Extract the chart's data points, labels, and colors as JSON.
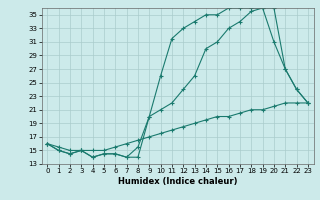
{
  "xlabel": "Humidex (Indice chaleur)",
  "background_color": "#cceaea",
  "line_color": "#1a7a6e",
  "grid_color": "#aacccc",
  "xlim": [
    -0.5,
    23.5
  ],
  "ylim": [
    13,
    36
  ],
  "yticks": [
    13,
    15,
    17,
    19,
    21,
    23,
    25,
    27,
    29,
    31,
    33,
    35
  ],
  "xticks": [
    0,
    1,
    2,
    3,
    4,
    5,
    6,
    7,
    8,
    9,
    10,
    11,
    12,
    13,
    14,
    15,
    16,
    17,
    18,
    19,
    20,
    21,
    22,
    23
  ],
  "line1_x": [
    0,
    1,
    2,
    3,
    4,
    5,
    6,
    7,
    8,
    9,
    10,
    11,
    12,
    13,
    14,
    15,
    16,
    17,
    18,
    19,
    20,
    21,
    22,
    23
  ],
  "line1_y": [
    16,
    15,
    14.5,
    15,
    14,
    14.5,
    14.5,
    14,
    14,
    20,
    21,
    22,
    24,
    26,
    30,
    31,
    33,
    34,
    35.5,
    36,
    36,
    27,
    24,
    22
  ],
  "line2_x": [
    0,
    1,
    2,
    3,
    4,
    5,
    6,
    7,
    8,
    9,
    10,
    11,
    12,
    13,
    14,
    15,
    16,
    17,
    18,
    19,
    20,
    21,
    22,
    23
  ],
  "line2_y": [
    16,
    15,
    14.5,
    15,
    14,
    14.5,
    14.5,
    14,
    15.5,
    20,
    26,
    31.5,
    33,
    34,
    35,
    35,
    36,
    36,
    36,
    36,
    31,
    27,
    24,
    22
  ],
  "line3_x": [
    0,
    1,
    2,
    3,
    4,
    5,
    6,
    7,
    8,
    9,
    10,
    11,
    12,
    13,
    14,
    15,
    16,
    17,
    18,
    19,
    20,
    21,
    22,
    23
  ],
  "line3_y": [
    16,
    15.5,
    15,
    15,
    15,
    15,
    15.5,
    16,
    16.5,
    17,
    17.5,
    18,
    18.5,
    19,
    19.5,
    20,
    20,
    20.5,
    21,
    21,
    21.5,
    22,
    22,
    22
  ]
}
